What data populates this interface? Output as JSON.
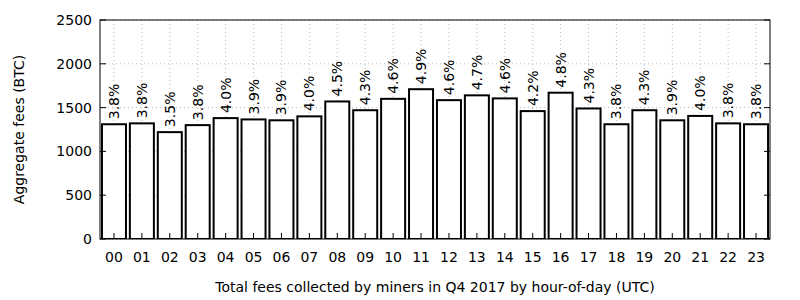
{
  "chart_data": {
    "type": "bar",
    "x_label": "Total fees collected by miners in Q4 2017 by hour-of-day (UTC)",
    "y_label": "Aggregate fees (BTC)",
    "categories": [
      "00",
      "01",
      "02",
      "03",
      "04",
      "05",
      "06",
      "07",
      "08",
      "09",
      "10",
      "11",
      "12",
      "13",
      "14",
      "15",
      "16",
      "17",
      "18",
      "19",
      "20",
      "21",
      "22",
      "23"
    ],
    "values": [
      1310,
      1320,
      1220,
      1300,
      1380,
      1365,
      1355,
      1400,
      1570,
      1470,
      1600,
      1710,
      1585,
      1640,
      1605,
      1460,
      1670,
      1490,
      1310,
      1470,
      1355,
      1405,
      1320,
      1310
    ],
    "annotations": [
      "3.8%",
      "3.8%",
      "3.5%",
      "3.8%",
      "4.0%",
      "3.9%",
      "3.9%",
      "4.0%",
      "4.5%",
      "4.3%",
      "4.6%",
      "4.9%",
      "4.6%",
      "4.7%",
      "4.6%",
      "4.2%",
      "4.8%",
      "4.3%",
      "3.8%",
      "4.3%",
      "3.9%",
      "4.0%",
      "3.8%",
      "3.8%"
    ],
    "color": "#ffffff",
    "ylim": [
      0,
      2500
    ],
    "yticks": [
      0,
      500,
      1000,
      1500,
      2000,
      2500
    ],
    "grid": true
  }
}
